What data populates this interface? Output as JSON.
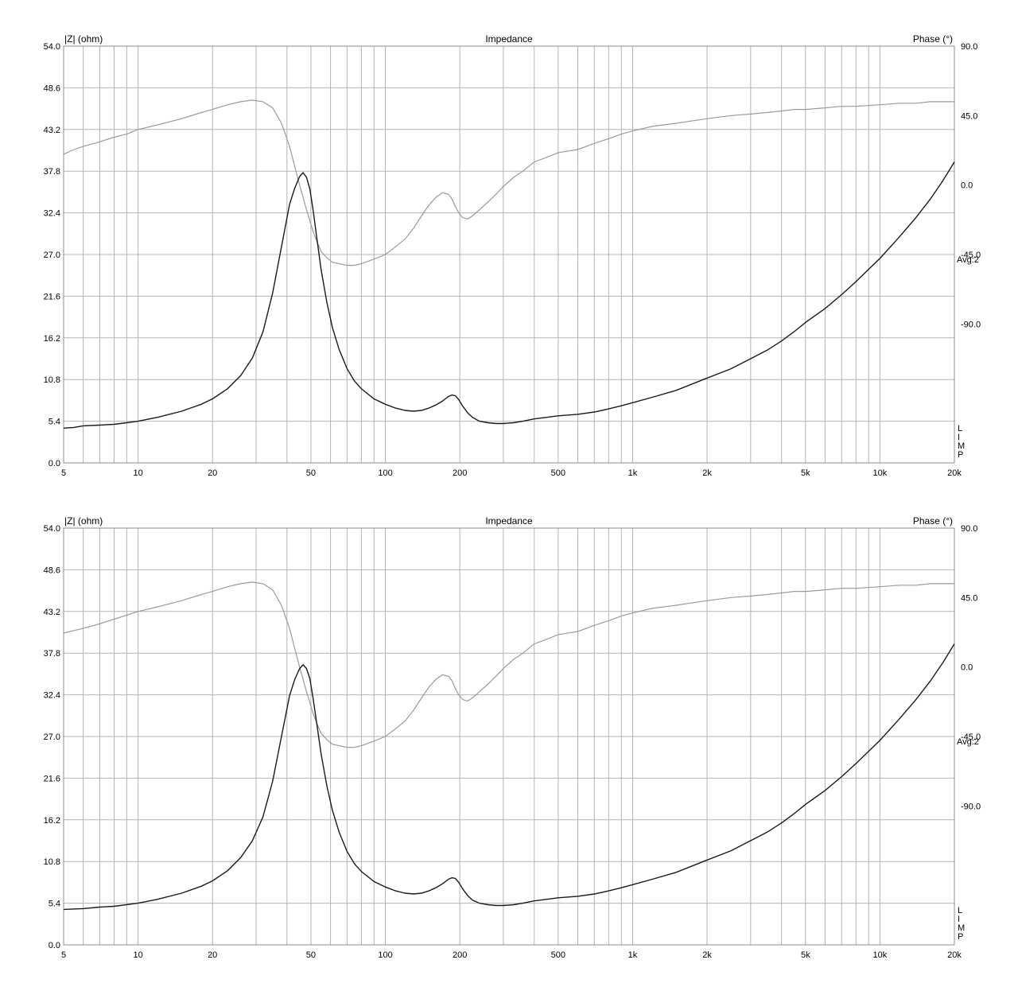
{
  "chart_data": [
    {
      "type": "line",
      "title": "Impedance",
      "ylabel": "|Z| (ohm)",
      "y2label": "Phase (°)",
      "xscale": "log",
      "xlim": [
        5,
        20000
      ],
      "ylim": [
        0,
        54
      ],
      "y2lim": [
        -180,
        90
      ],
      "grid": true,
      "x_tick_labels": [
        "5",
        "10",
        "20",
        "50",
        "100",
        "200",
        "500",
        "1k",
        "2k",
        "5k",
        "10k",
        "20k"
      ],
      "y_tick_labels": [
        "54.0",
        "48.6",
        "43.2",
        "37.8",
        "32.4",
        "27.0",
        "21.6",
        "16.2",
        "10.8",
        "5.4",
        "0.0"
      ],
      "y2_tick_labels": [
        "90.0",
        "45.0",
        "0.0",
        "-45.0",
        "-90.0"
      ],
      "annotation": "Avg:2",
      "lim_marker": [
        "L",
        "I",
        "M",
        "P"
      ],
      "colors": {
        "impedance": "#1a1a1a",
        "phase": "#9a9a9a",
        "grid": "#b4b4b4"
      },
      "series": [
        {
          "x": [
            5,
            5.5,
            6,
            7,
            8,
            9,
            10,
            12,
            15,
            18,
            20,
            23,
            26,
            29,
            32,
            35,
            38,
            41,
            43,
            45,
            46.5,
            48,
            49.5,
            51,
            53,
            55,
            58,
            61,
            65,
            70,
            75,
            80,
            90,
            100,
            110,
            120,
            130,
            140,
            150,
            160,
            170,
            180,
            186,
            192,
            198,
            205,
            215,
            225,
            240,
            260,
            280,
            300,
            330,
            360,
            400,
            450,
            500,
            600,
            700,
            800,
            900,
            1000,
            1200,
            1500,
            2000,
            2500,
            3000,
            3500,
            4000,
            4500,
            5000,
            6000,
            7000,
            8000,
            10000,
            12000,
            14000,
            16000,
            18000,
            20000
          ],
          "values": [
            4.5,
            4.6,
            4.8,
            4.9,
            5.0,
            5.2,
            5.4,
            5.9,
            6.7,
            7.6,
            8.3,
            9.6,
            11.3,
            13.6,
            17.0,
            22.0,
            28.0,
            33.5,
            35.6,
            37.1,
            37.6,
            37.0,
            35.5,
            32.8,
            28.8,
            25.0,
            20.8,
            17.6,
            14.7,
            12.2,
            10.6,
            9.6,
            8.3,
            7.6,
            7.1,
            6.8,
            6.7,
            6.8,
            7.1,
            7.5,
            8.0,
            8.6,
            8.8,
            8.7,
            8.2,
            7.4,
            6.5,
            5.9,
            5.4,
            5.2,
            5.1,
            5.1,
            5.2,
            5.4,
            5.7,
            5.9,
            6.1,
            6.3,
            6.6,
            7.0,
            7.4,
            7.8,
            8.5,
            9.4,
            11.0,
            12.2,
            13.5,
            14.6,
            15.8,
            17.0,
            18.2,
            20.0,
            21.8,
            23.5,
            26.5,
            29.3,
            31.8,
            34.2,
            36.6,
            39.0
          ],
          "phase_values": [
            20,
            23,
            25,
            28,
            31,
            33,
            36,
            39,
            43,
            47,
            49,
            52,
            54,
            55,
            54,
            50,
            40,
            25,
            12,
            0,
            -8,
            -16,
            -23,
            -30,
            -37,
            -43,
            -47,
            -50,
            -51,
            -52,
            -52,
            -51,
            -48,
            -45,
            -40,
            -35,
            -28,
            -20,
            -13,
            -8,
            -5,
            -6,
            -9,
            -14,
            -18,
            -21,
            -22,
            -20,
            -16,
            -11,
            -6,
            -1,
            5,
            9,
            15,
            18,
            21,
            23,
            27,
            30,
            33,
            35,
            38,
            40,
            43,
            45,
            46,
            47,
            48,
            49,
            49,
            50,
            51,
            51,
            52,
            53,
            53,
            54,
            54,
            54
          ]
        }
      ]
    },
    {
      "type": "line",
      "title": "Impedance",
      "ylabel": "|Z| (ohm)",
      "y2label": "Phase (°)",
      "xscale": "log",
      "xlim": [
        5,
        20000
      ],
      "ylim": [
        0,
        54
      ],
      "y2lim": [
        -180,
        90
      ],
      "grid": true,
      "x_tick_labels": [
        "5",
        "10",
        "20",
        "50",
        "100",
        "200",
        "500",
        "1k",
        "2k",
        "5k",
        "10k",
        "20k"
      ],
      "y_tick_labels": [
        "54.0",
        "48.6",
        "43.2",
        "37.8",
        "32.4",
        "27.0",
        "21.6",
        "16.2",
        "10.8",
        "5.4",
        "0.0"
      ],
      "y2_tick_labels": [
        "90.0",
        "45.0",
        "0.0",
        "-45.0",
        "-90.0"
      ],
      "annotation": "Avg:2",
      "lim_marker": [
        "L",
        "I",
        "M",
        "P"
      ],
      "colors": {
        "impedance": "#1a1a1a",
        "phase": "#9a9a9a",
        "grid": "#b4b4b4"
      },
      "series": [
        {
          "x": [
            5,
            6,
            7,
            8,
            10,
            12,
            15,
            18,
            20,
            23,
            26,
            29,
            32,
            35,
            38,
            41,
            43,
            45,
            46.5,
            48,
            49.5,
            51,
            53,
            55,
            58,
            61,
            65,
            70,
            75,
            80,
            90,
            100,
            110,
            120,
            130,
            140,
            150,
            160,
            170,
            180,
            186,
            192,
            198,
            205,
            215,
            225,
            240,
            260,
            280,
            300,
            330,
            360,
            400,
            450,
            500,
            600,
            700,
            800,
            900,
            1000,
            1200,
            1500,
            2000,
            2500,
            3000,
            3500,
            4000,
            4500,
            5000,
            6000,
            7000,
            8000,
            10000,
            12000,
            14000,
            16000,
            18000,
            20000
          ],
          "values": [
            4.6,
            4.7,
            4.9,
            5.0,
            5.4,
            5.9,
            6.7,
            7.6,
            8.3,
            9.6,
            11.3,
            13.5,
            16.6,
            21.2,
            27.0,
            32.3,
            34.4,
            35.8,
            36.3,
            35.8,
            34.5,
            32.0,
            28.3,
            24.7,
            20.6,
            17.5,
            14.6,
            12.1,
            10.5,
            9.5,
            8.2,
            7.5,
            7.0,
            6.7,
            6.6,
            6.7,
            7.0,
            7.4,
            7.9,
            8.5,
            8.7,
            8.6,
            8.1,
            7.3,
            6.4,
            5.8,
            5.4,
            5.2,
            5.1,
            5.1,
            5.2,
            5.4,
            5.7,
            5.9,
            6.1,
            6.3,
            6.6,
            7.0,
            7.4,
            7.8,
            8.5,
            9.4,
            11.0,
            12.2,
            13.5,
            14.6,
            15.8,
            17.0,
            18.2,
            20.0,
            21.8,
            23.5,
            26.5,
            29.3,
            31.8,
            34.2,
            36.6,
            39.0
          ],
          "phase_values": [
            22,
            25,
            28,
            31,
            36,
            39,
            43,
            47,
            49,
            52,
            54,
            55,
            54,
            50,
            40,
            25,
            12,
            0,
            -8,
            -16,
            -23,
            -30,
            -37,
            -43,
            -47,
            -50,
            -51,
            -52,
            -52,
            -51,
            -48,
            -45,
            -40,
            -35,
            -28,
            -20,
            -13,
            -8,
            -5,
            -6,
            -9,
            -14,
            -18,
            -21,
            -22,
            -20,
            -16,
            -11,
            -6,
            -1,
            5,
            9,
            15,
            18,
            21,
            23,
            27,
            30,
            33,
            35,
            38,
            40,
            43,
            45,
            46,
            47,
            48,
            49,
            49,
            50,
            51,
            51,
            52,
            53,
            53,
            54,
            54,
            54
          ]
        }
      ]
    }
  ]
}
